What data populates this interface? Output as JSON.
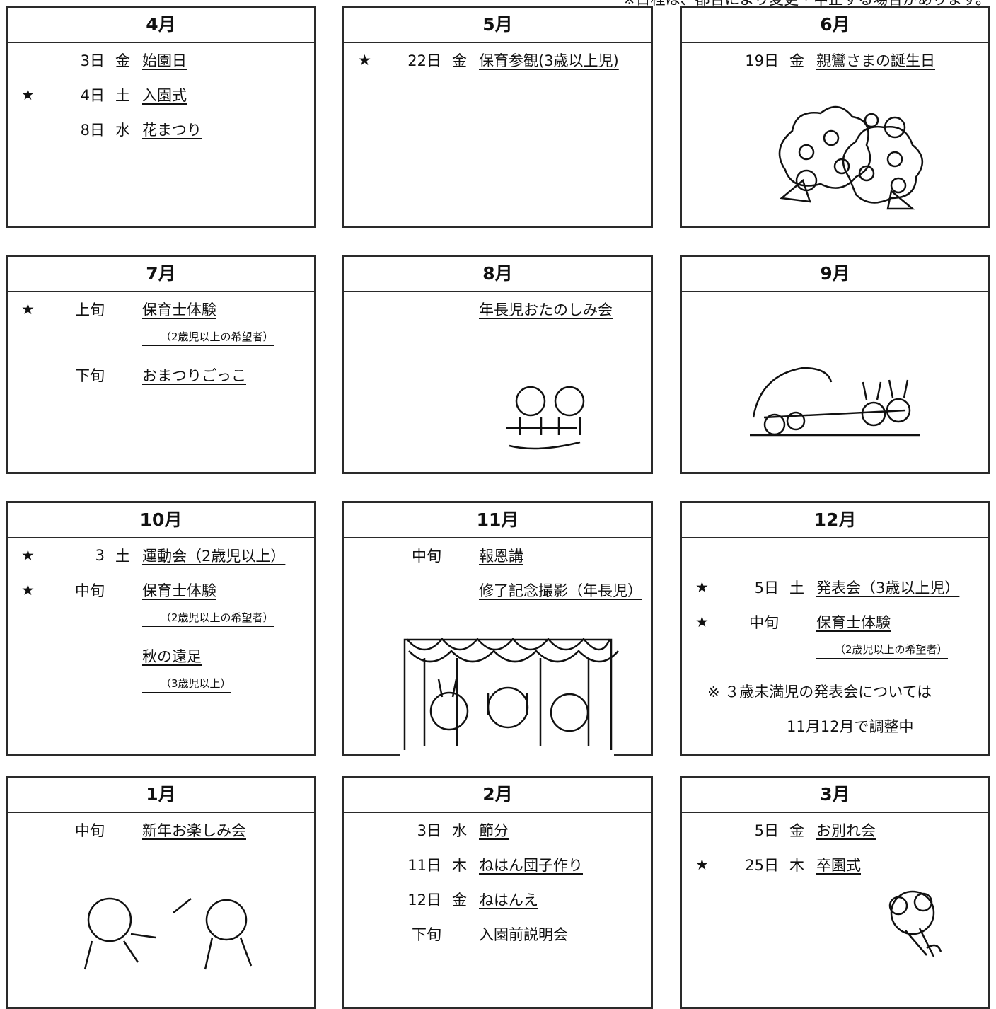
{
  "notice": "※日程は、都合により変更・中止する場合があります。",
  "months": [
    {
      "title": "4月",
      "events": [
        {
          "date": "3日",
          "weekday": "金",
          "name": "始園日"
        },
        {
          "mark": "★",
          "date": "4日",
          "weekday": "土",
          "name": "入園式"
        },
        {
          "date": "8日",
          "weekday": "水",
          "name": "花まつり"
        }
      ]
    },
    {
      "title": "5月",
      "events": [
        {
          "mark": "★",
          "date": "22日",
          "weekday": "金",
          "name": "保育参観(3歳以上児)"
        }
      ]
    },
    {
      "title": "6月",
      "events": [
        {
          "date": "19日",
          "weekday": "金",
          "name": "親鸞さまの誕生日"
        }
      ]
    },
    {
      "title": "7月",
      "events": [
        {
          "mark": "★",
          "date": "上旬",
          "name": "保育士体験",
          "sub": "（2歳児以上の希望者）"
        },
        {
          "date": "下旬",
          "name": "おまつりごっこ"
        }
      ]
    },
    {
      "title": "8月",
      "events": [
        {
          "name": "年長児おたのしみ会"
        }
      ]
    },
    {
      "title": "9月",
      "events": []
    },
    {
      "title": "10月",
      "events": [
        {
          "mark": "★",
          "date": "3",
          "weekday": "土",
          "name": "運動会（2歳児以上）"
        },
        {
          "mark": "★",
          "date": "中旬",
          "name": "保育士体験",
          "sub": "（2歳児以上の希望者）"
        },
        {
          "name": "秋の遠足",
          "sub": "（3歳児以上）"
        }
      ]
    },
    {
      "title": "11月",
      "events": [
        {
          "date": "中旬",
          "name": "報恩講"
        },
        {
          "name": "修了記念撮影（年長児）"
        }
      ]
    },
    {
      "title": "12月",
      "events": [
        {
          "mark": "★",
          "date": "5日",
          "weekday": "土",
          "name": "発表会（3歳以上児）"
        },
        {
          "mark": "★",
          "date": "中旬",
          "name": "保育士体験",
          "sub": "（2歳児以上の希望者）"
        }
      ],
      "notes": [
        "※ ３歳未満児の発表会については",
        "11月12月で調整中"
      ]
    },
    {
      "title": "1月",
      "events": [
        {
          "date": "中旬",
          "name": "新年お楽しみ会"
        }
      ]
    },
    {
      "title": "2月",
      "events": [
        {
          "date": "3日",
          "weekday": "水",
          "name": "節分"
        },
        {
          "date": "11日",
          "weekday": "木",
          "name": "ねはん団子作り"
        },
        {
          "date": "12日",
          "weekday": "金",
          "name": "ねはんえ"
        },
        {
          "date": "下旬",
          "name": "入園前説明会",
          "underline": false
        }
      ]
    },
    {
      "title": "3月",
      "events": [
        {
          "date": "5日",
          "weekday": "金",
          "name": "お別れ会"
        },
        {
          "mark": "★",
          "date": "25日",
          "weekday": "木",
          "name": "卒園式"
        }
      ]
    }
  ]
}
